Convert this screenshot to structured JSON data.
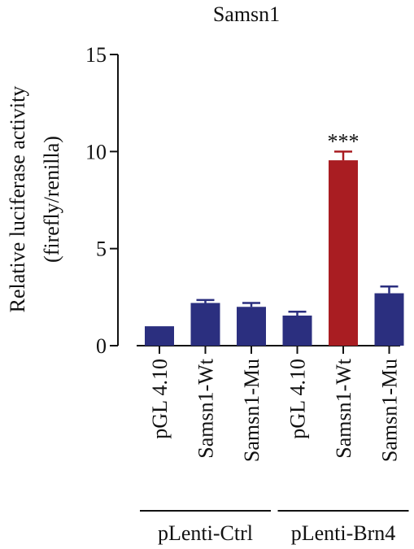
{
  "chart_data": {
    "type": "bar",
    "title": "Samsn1",
    "ylabel_lines": [
      "Relative luciferase activity",
      "(firefly/renilla)"
    ],
    "xlabel": "",
    "ylim": [
      0,
      15
    ],
    "yticks": [
      "0",
      "5",
      "10",
      "15"
    ],
    "categories": [
      "pGL 4.10",
      "Samsn1-Wt",
      "Samsn1-Mu",
      "pGL 4.10",
      "Samsn1-Wt",
      "Samsn1-Mu"
    ],
    "values": [
      1.0,
      2.2,
      2.0,
      1.55,
      9.55,
      2.7
    ],
    "errors": [
      0.0,
      0.15,
      0.2,
      0.2,
      0.45,
      0.35
    ],
    "colors": [
      "#2b2f7f",
      "#2b2f7f",
      "#2b2f7f",
      "#2b2f7f",
      "#a91d22",
      "#2b2f7f"
    ],
    "annotations": [
      {
        "category_index": 4,
        "text": "***"
      }
    ],
    "groups": [
      {
        "label": "pLenti-Ctrl",
        "from": 0,
        "to": 2
      },
      {
        "label": "pLenti-Brn4",
        "from": 3,
        "to": 5
      }
    ],
    "grid": false,
    "legend": "none"
  }
}
